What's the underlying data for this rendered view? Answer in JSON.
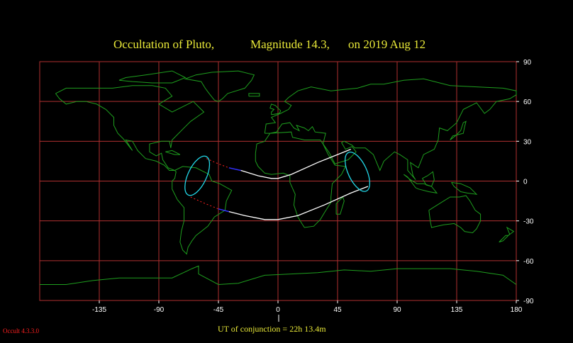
{
  "title": {
    "object": "Occultation  of  Pluto,",
    "magnitude": "Magnitude 14.3,",
    "date": "on  2019  Aug 12"
  },
  "chart_data": {
    "type": "map",
    "projection": "equirectangular",
    "lon_range": [
      -180,
      180
    ],
    "lat_range": [
      -90,
      90
    ],
    "grid": true,
    "x_ticks": [
      "-135",
      "-90",
      "-45",
      "0",
      "45",
      "90",
      "135",
      "180"
    ],
    "y_ticks": [
      "90",
      "60",
      "30",
      "0",
      "-30",
      "-60",
      "-90"
    ],
    "colors": {
      "grid": "#b03030",
      "coast": "#1e9e1e",
      "path": "#ffffff",
      "ellipse": "#22d8e8",
      "daylight_edge": "#3030ff",
      "night_edge": "#ff2020"
    },
    "path_north_edge": [
      [
        -28,
        8
      ],
      [
        -15,
        4
      ],
      [
        -5,
        2
      ],
      [
        0,
        2
      ],
      [
        10,
        5
      ],
      [
        30,
        14
      ],
      [
        45,
        20
      ],
      [
        55,
        24
      ]
    ],
    "path_south_edge": [
      [
        -37,
        -23
      ],
      [
        -25,
        -26
      ],
      [
        -10,
        -29
      ],
      [
        0,
        -29
      ],
      [
        15,
        -26
      ],
      [
        35,
        -18
      ],
      [
        55,
        -9
      ],
      [
        68,
        -4
      ]
    ],
    "north_dashed": [
      [
        -54,
        17
      ],
      [
        -45,
        13
      ],
      [
        -37,
        10
      ],
      [
        -28,
        8
      ]
    ],
    "south_dashed": [
      [
        -66,
        -12
      ],
      [
        -55,
        -17
      ],
      [
        -45,
        -21
      ],
      [
        -37,
        -23
      ]
    ],
    "ellipse_west": {
      "cx": -61,
      "cy": 4,
      "rx": 7,
      "ry": 16,
      "tilt": 25
    },
    "ellipse_east": {
      "cx": 60,
      "cy": 7,
      "rx": 7,
      "ry": 16,
      "tilt": -25
    },
    "conjunction_lon": 5
  },
  "footer": {
    "ut": "UT of conjunction = 22h 13.4m",
    "version": "Occult 4.3.3.0"
  }
}
